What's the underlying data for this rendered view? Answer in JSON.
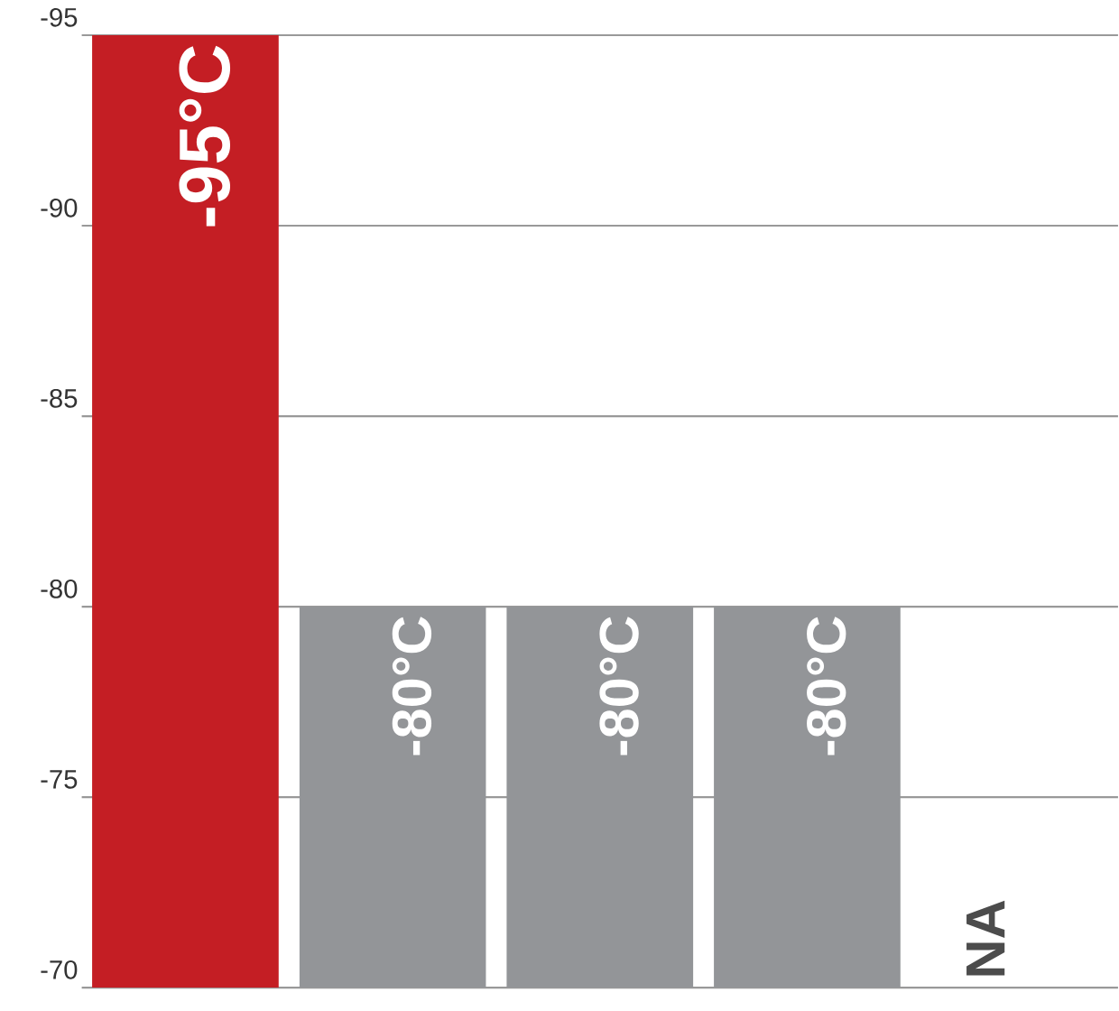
{
  "chart_data": {
    "type": "bar",
    "categories": [
      null,
      null,
      null,
      null,
      null
    ],
    "values": [
      -95,
      -80,
      -80,
      -80,
      null
    ],
    "colors": [
      "#c41e24",
      "#939598",
      "#939598",
      "#939598",
      "#939598"
    ],
    "value_labels": [
      "-95°C",
      "-80°C",
      "-80°C",
      "-80°C",
      "NA"
    ],
    "ylim": [
      -70,
      -95
    ],
    "yticks": [
      -95,
      -90,
      -85,
      -80,
      -75,
      -70
    ],
    "grid": "y"
  }
}
